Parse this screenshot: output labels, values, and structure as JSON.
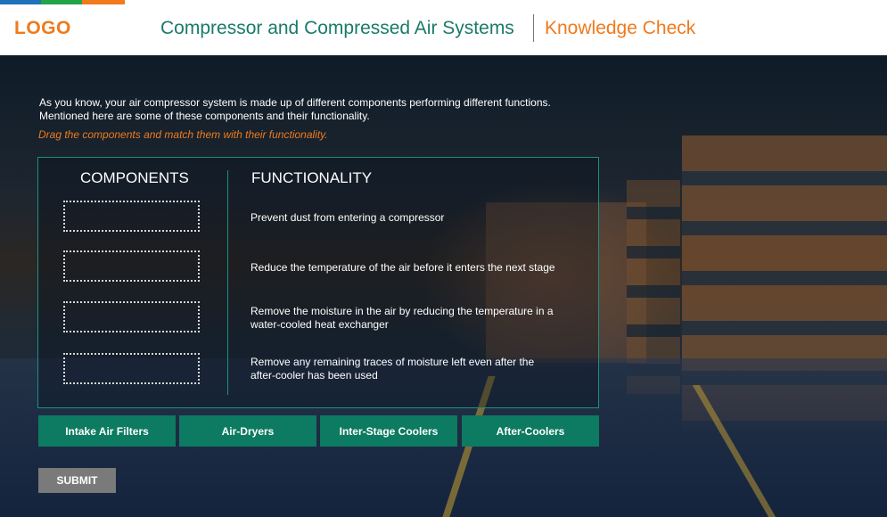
{
  "header": {
    "logo": "LOGO",
    "course_title": "Compressor and Compressed Air Systems",
    "section_title": "Knowledge Check"
  },
  "colors": {
    "logo": "#f07a1c",
    "course_title": "#1a7a6a",
    "section_title": "#f07a1c",
    "accent_teal": "#0d7a62",
    "instruction": "#f07a1c",
    "strip": [
      "#1e73b8",
      "#22a44a",
      "#f07a1c"
    ]
  },
  "intro": {
    "line1": "As you know, your air compressor system is made up of different components performing different functions.",
    "line2": "Mentioned here are some of these components and their functionality."
  },
  "instruction": "Drag the components and match them with their functionality.",
  "table": {
    "components_header": "COMPONENTS",
    "functionality_header": "FUNCTIONALITY",
    "functions": [
      "Prevent dust from entering a compressor",
      "Reduce the temperature of the air before it enters the next stage",
      "Remove the moisture in the air by reducing the temperature in a water-cooled heat exchanger",
      "Remove any remaining traces of moisture left even after the after-cooler has been used"
    ]
  },
  "components": [
    "Intake Air Filters",
    "Air-Dryers",
    "Inter-Stage Coolers",
    "After-Coolers"
  ],
  "submit_label": "SUBMIT"
}
